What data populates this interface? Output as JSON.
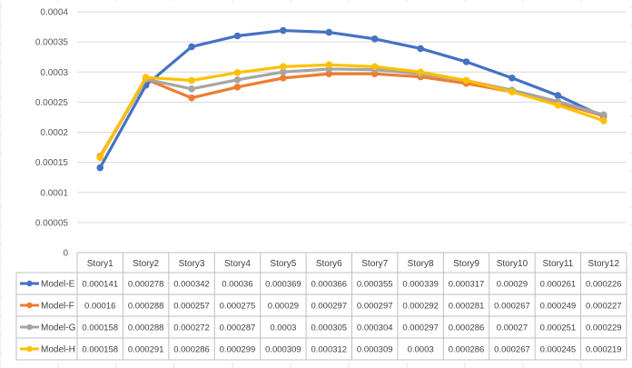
{
  "chart_data": {
    "type": "line",
    "title": "",
    "xlabel": "",
    "ylabel": "",
    "ylim": [
      0,
      0.0004
    ],
    "yticks": [
      "0",
      "0.00005",
      "0.0001",
      "0.00015",
      "0.0002",
      "0.00025",
      "0.0003",
      "0.00035",
      "0.0004"
    ],
    "grid": true,
    "legend": "data-table-left",
    "categories": [
      "Story1",
      "Story2",
      "Story3",
      "Story4",
      "Story5",
      "Story6",
      "Story7",
      "Story8",
      "Story9",
      "Story10",
      "Story11",
      "Story12"
    ],
    "series": [
      {
        "name": "Model-E",
        "color": "#4472c4",
        "values": [
          0.000141,
          0.000278,
          0.000342,
          0.00036,
          0.000369,
          0.000366,
          0.000355,
          0.000339,
          0.000317,
          0.00029,
          0.000261,
          0.000226
        ],
        "labels": [
          "0.000141",
          "0.000278",
          "0.000342",
          "0.00036",
          "0.000369",
          "0.000366",
          "0.000355",
          "0.000339",
          "0.000317",
          "0.00029",
          "0.000261",
          "0.000226"
        ]
      },
      {
        "name": "Model-F",
        "color": "#ed7d31",
        "values": [
          0.00016,
          0.000288,
          0.000257,
          0.000275,
          0.00029,
          0.000297,
          0.000297,
          0.000292,
          0.000281,
          0.000267,
          0.000249,
          0.000227
        ],
        "labels": [
          "0.00016",
          "0.000288",
          "0.000257",
          "0.000275",
          "0.00029",
          "0.000297",
          "0.000297",
          "0.000292",
          "0.000281",
          "0.000267",
          "0.000249",
          "0.000227"
        ]
      },
      {
        "name": "Model-G",
        "color": "#a5a5a5",
        "values": [
          0.000158,
          0.000288,
          0.000272,
          0.000287,
          0.0003,
          0.000305,
          0.000304,
          0.000297,
          0.000286,
          0.00027,
          0.000251,
          0.000229
        ],
        "labels": [
          "0.000158",
          "0.000288",
          "0.000272",
          "0.000287",
          "0.0003",
          "0.000305",
          "0.000304",
          "0.000297",
          "0.000286",
          "0.00027",
          "0.000251",
          "0.000229"
        ]
      },
      {
        "name": "Model-H",
        "color": "#ffc000",
        "values": [
          0.000158,
          0.000291,
          0.000286,
          0.000299,
          0.000309,
          0.000312,
          0.000309,
          0.0003,
          0.000286,
          0.000267,
          0.000245,
          0.000219
        ],
        "labels": [
          "0.000158",
          "0.000291",
          "0.000286",
          "0.000299",
          "0.000309",
          "0.000312",
          "0.000309",
          "0.0003",
          "0.000286",
          "0.000267",
          "0.000245",
          "0.000219"
        ]
      }
    ]
  }
}
